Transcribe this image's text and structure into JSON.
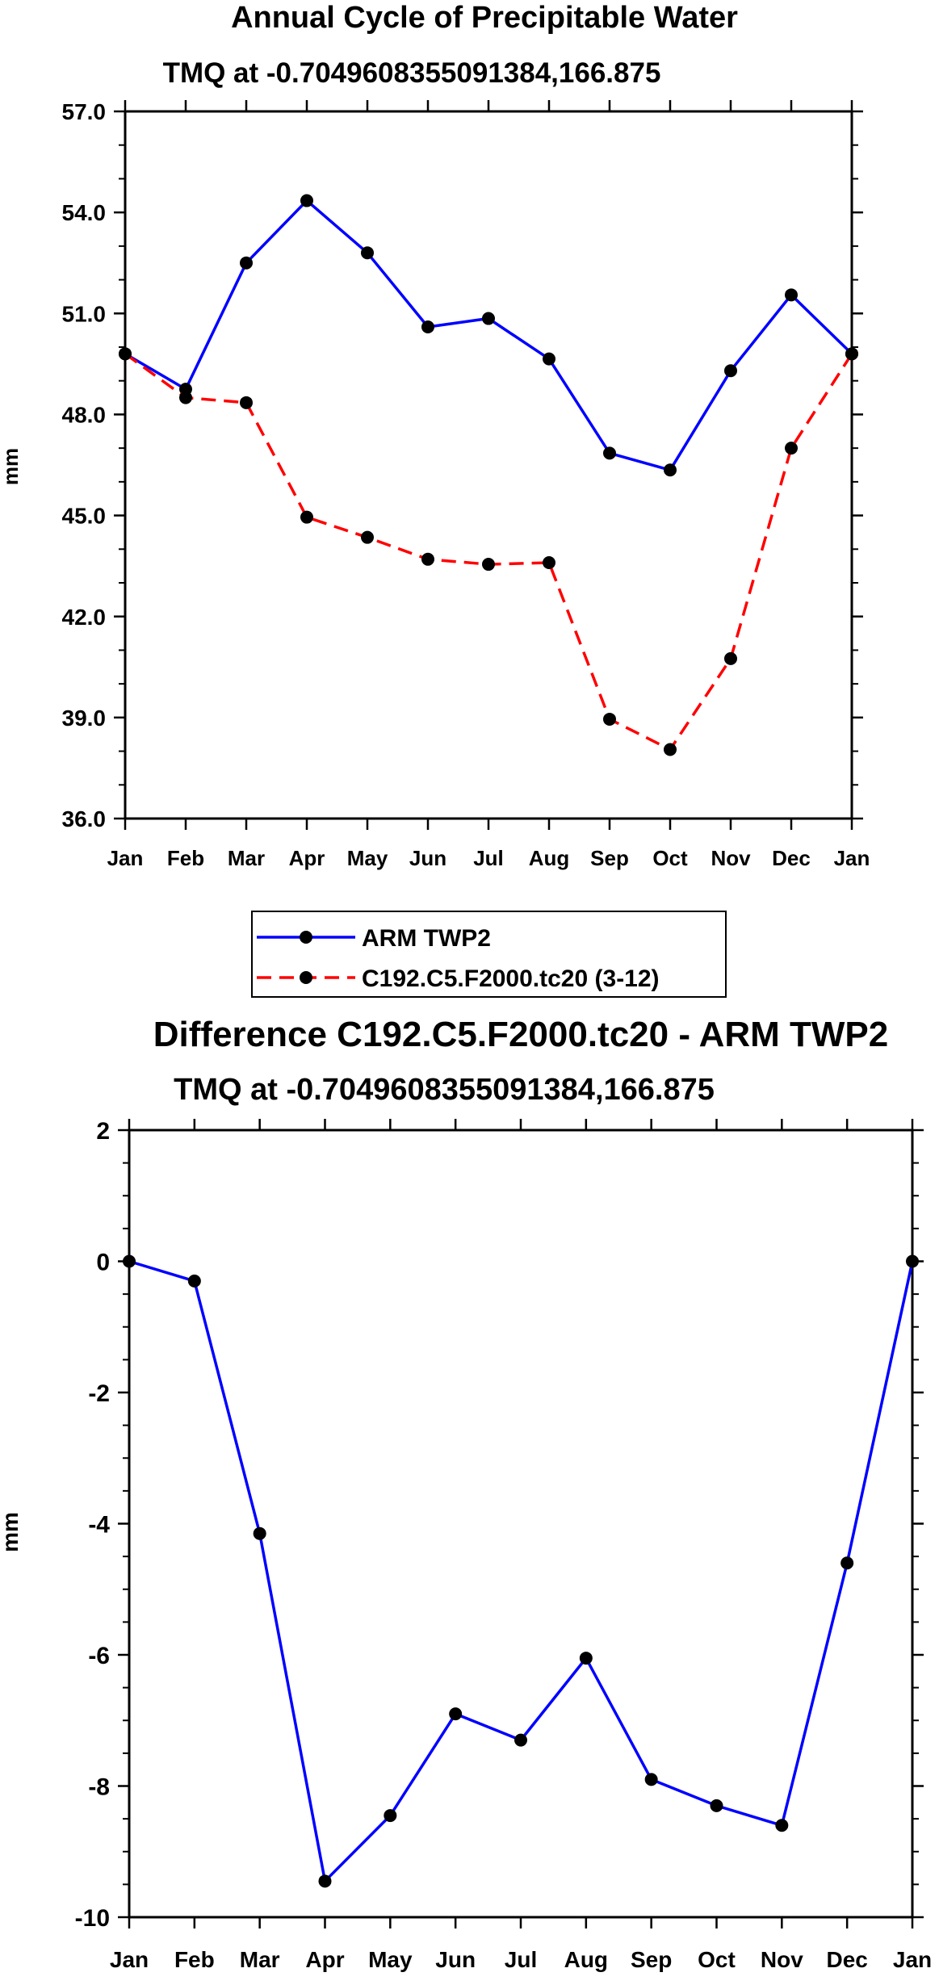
{
  "legend": {
    "entries": [
      {
        "label": "ARM TWP2",
        "color": "#0000ff",
        "style": "solid"
      },
      {
        "label": "C192.C5.F2000.tc20 (3-12)",
        "color": "#ff0000",
        "style": "dashed"
      }
    ]
  },
  "colors": {
    "series_obs": "#0000ff",
    "series_model": "#ff0000",
    "marker": "#000000",
    "axis": "#000000"
  },
  "chart_data": [
    {
      "type": "line",
      "title": "Annual Cycle of Precipitable Water",
      "subtitle": "TMQ at -0.7049608355091384,166.875",
      "xlabel": "",
      "ylabel": "mm",
      "categories": [
        "Jan",
        "Feb",
        "Mar",
        "Apr",
        "May",
        "Jun",
        "Jul",
        "Aug",
        "Sep",
        "Oct",
        "Nov",
        "Dec",
        "Jan"
      ],
      "ylim": [
        36.0,
        57.0
      ],
      "yticks": [
        36.0,
        39.0,
        42.0,
        45.0,
        48.0,
        51.0,
        54.0,
        57.0
      ],
      "ytick_labels": [
        "36.0",
        "39.0",
        "42.0",
        "45.0",
        "48.0",
        "51.0",
        "54.0",
        "57.0"
      ],
      "series": [
        {
          "name": "ARM TWP2",
          "values": [
            49.8,
            48.75,
            52.5,
            54.35,
            52.8,
            50.6,
            50.85,
            49.65,
            46.85,
            46.35,
            49.3,
            51.55,
            49.8
          ]
        },
        {
          "name": "C192.C5.F2000.tc20 (3-12)",
          "values": [
            49.8,
            48.5,
            48.35,
            44.95,
            44.35,
            43.7,
            43.55,
            43.6,
            38.95,
            38.05,
            40.75,
            47.0,
            49.8
          ]
        }
      ],
      "grid": false
    },
    {
      "type": "line",
      "title": "Difference C192.C5.F2000.tc20 - ARM TWP2",
      "subtitle": "TMQ at -0.7049608355091384,166.875",
      "xlabel": "",
      "ylabel": "mm",
      "categories": [
        "Jan",
        "Feb",
        "Mar",
        "Apr",
        "May",
        "Jun",
        "Jul",
        "Aug",
        "Sep",
        "Oct",
        "Nov",
        "Dec",
        "Jan"
      ],
      "ylim": [
        -10,
        2
      ],
      "yticks": [
        -10,
        -8,
        -6,
        -4,
        -2,
        0,
        2
      ],
      "ytick_labels": [
        "-10",
        "-8",
        "-6",
        "-4",
        "-2",
        "0",
        "2"
      ],
      "series": [
        {
          "name": "Difference",
          "values": [
            0.0,
            -0.3,
            -4.15,
            -9.45,
            -8.45,
            -6.9,
            -7.3,
            -6.05,
            -7.9,
            -8.3,
            -8.6,
            -4.6,
            0.0
          ]
        }
      ],
      "grid": false
    }
  ]
}
